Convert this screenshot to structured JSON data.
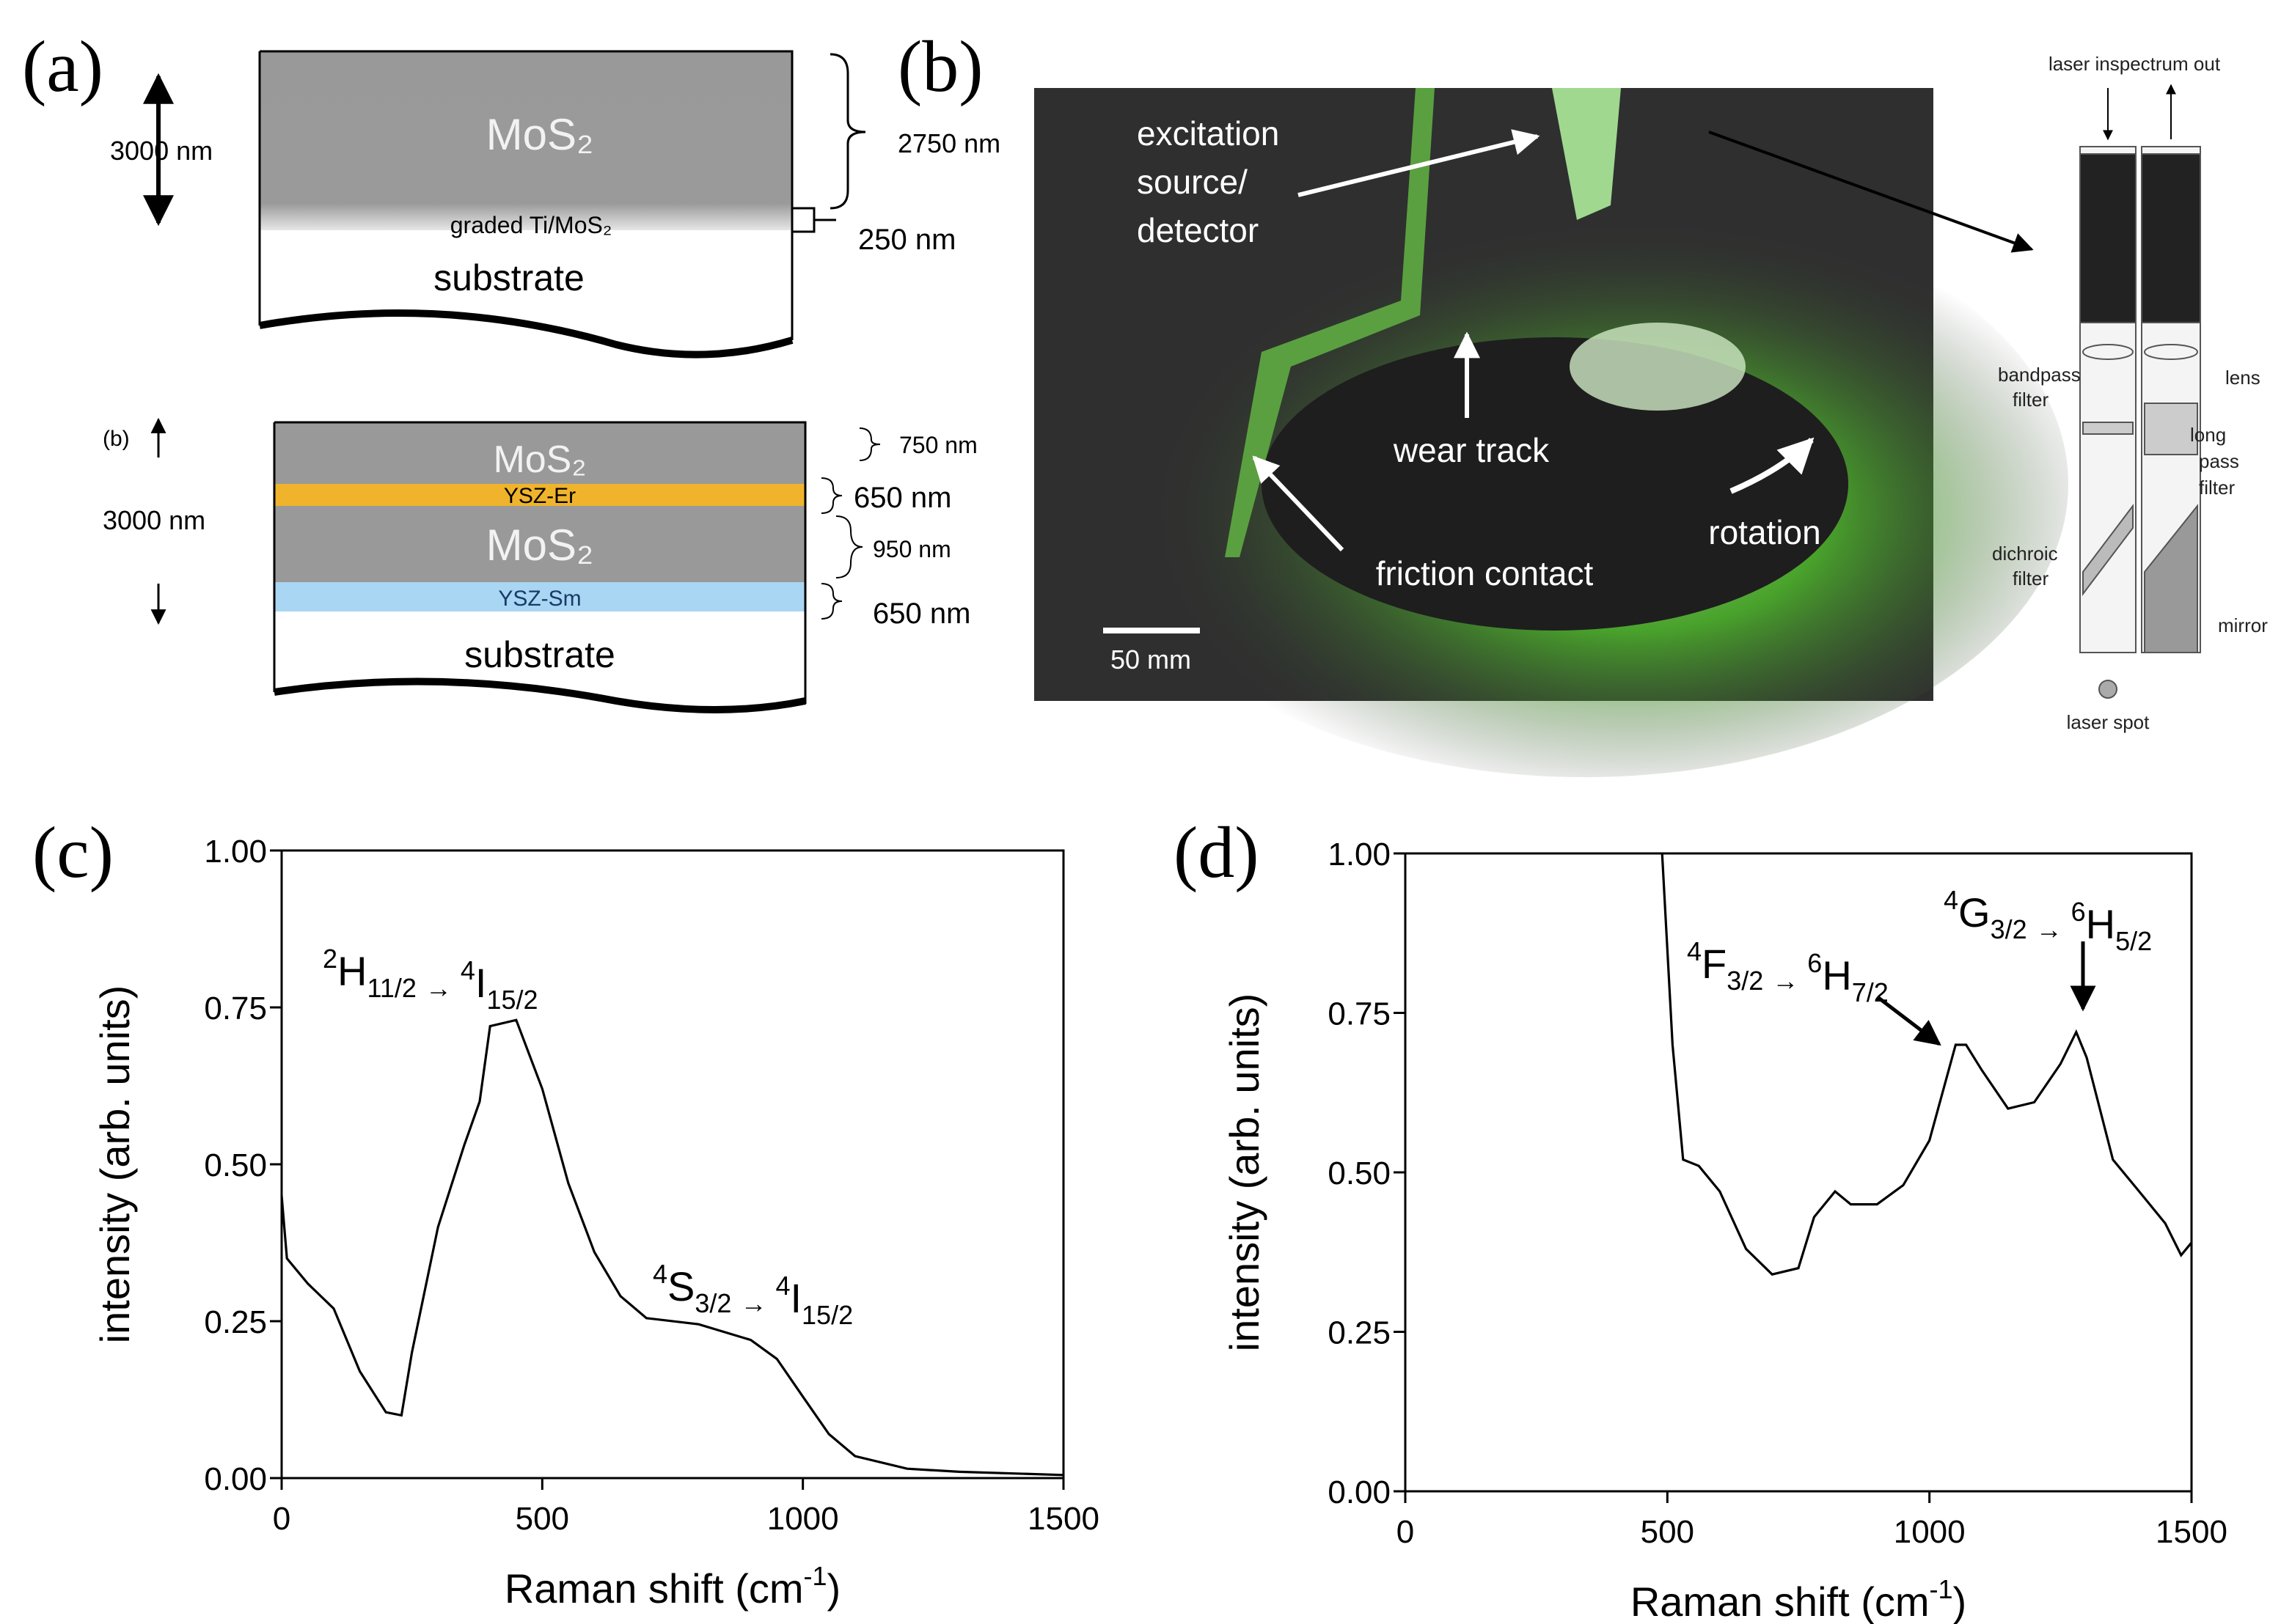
{
  "panel_a": {
    "label": "(a)",
    "top": {
      "thickness": "3000 nm",
      "layers": [
        "MoS₂",
        "graded Ti/MoS₂",
        "substrate"
      ],
      "dims": [
        "2750 nm",
        "250 nm"
      ]
    },
    "bottom": {
      "label": "(b)",
      "thickness": "3000 nm",
      "layers": [
        "MoS₂",
        "YSZ-Er",
        "MoS₂",
        "YSZ-Sm",
        "substrate"
      ],
      "dims": [
        "750 nm",
        "650 nm",
        "950 nm",
        "650 nm"
      ]
    }
  },
  "panel_b": {
    "label": "(b)",
    "photo": {
      "labels": [
        "excitation",
        "source/",
        "detector",
        "wear track",
        "friction contact",
        "rotation"
      ],
      "scale_bar": "50 mm"
    },
    "schematic": {
      "labels": [
        "laser inspectrum out",
        "lens",
        "bandpass",
        "filter",
        "long",
        "pass",
        "filter",
        "dichroic",
        "filter",
        "mirror",
        "laser spot"
      ]
    }
  },
  "chart_data": [
    {
      "type": "line",
      "panel_label": "(c)",
      "color": "#000000",
      "x": [
        0,
        10,
        50,
        100,
        150,
        200,
        230,
        250,
        300,
        350,
        380,
        400,
        450,
        500,
        550,
        600,
        650,
        700,
        800,
        900,
        950,
        1000,
        1050,
        1100,
        1200,
        1300,
        1500
      ],
      "values": [
        0.45,
        0.35,
        0.31,
        0.27,
        0.17,
        0.105,
        0.1,
        0.2,
        0.4,
        0.53,
        0.6,
        0.72,
        0.73,
        0.62,
        0.47,
        0.36,
        0.29,
        0.255,
        0.245,
        0.22,
        0.19,
        0.13,
        0.07,
        0.035,
        0.015,
        0.01,
        0.005
      ],
      "xlim": [
        0,
        1500
      ],
      "ylim": [
        0,
        1
      ],
      "xticks": [
        0,
        500,
        1000,
        1500
      ],
      "yticks": [
        {
          "value": 0,
          "label": "0.00"
        },
        {
          "value": 0.25,
          "label": "0.25"
        },
        {
          "value": 0.5,
          "label": "0.50"
        },
        {
          "value": 0.75,
          "label": "0.75"
        },
        {
          "value": 1,
          "label": "1.00"
        }
      ],
      "x_label": {
        "text": "Raman shift (cm",
        "sup": "-1",
        "end": ")"
      },
      "y_label": "intensity (arb. units)",
      "annotations": [
        {
          "terms": [
            {
              "sup": "2",
              "base": "H",
              "sub": "11/2"
            },
            {
              "sup": "4",
              "base": "I",
              "sub": "15/2"
            }
          ],
          "arrow": "→"
        },
        {
          "terms": [
            {
              "sup": "4",
              "base": "S",
              "sub": "3/2"
            },
            {
              "sup": "4",
              "base": "I",
              "sub": "15/2"
            }
          ],
          "arrow": "→"
        }
      ]
    },
    {
      "type": "line",
      "panel_label": "(d)",
      "color": "#000000",
      "x": [
        490,
        510,
        530,
        560,
        600,
        650,
        700,
        750,
        780,
        820,
        850,
        900,
        950,
        1000,
        1050,
        1070,
        1100,
        1150,
        1200,
        1250,
        1280,
        1300,
        1350,
        1400,
        1450,
        1480,
        1500
      ],
      "values": [
        1.0,
        0.7,
        0.52,
        0.51,
        0.47,
        0.38,
        0.34,
        0.35,
        0.43,
        0.47,
        0.45,
        0.45,
        0.48,
        0.55,
        0.7,
        0.7,
        0.66,
        0.6,
        0.61,
        0.67,
        0.72,
        0.68,
        0.52,
        0.47,
        0.42,
        0.37,
        0.39
      ],
      "xlim": [
        0,
        1500
      ],
      "ylim": [
        0,
        1
      ],
      "xticks": [
        0,
        500,
        1000,
        1500
      ],
      "yticks": [
        {
          "value": 0,
          "label": "0.00"
        },
        {
          "value": 0.25,
          "label": "0.25"
        },
        {
          "value": 0.5,
          "label": "0.50"
        },
        {
          "value": 0.75,
          "label": "0.75"
        },
        {
          "value": 1,
          "label": "1.00"
        }
      ],
      "x_label": {
        "text": "Raman shift (cm",
        "sup": "-1",
        "end": ")"
      },
      "y_label": "intensity (arb. units)",
      "annotations": [
        {
          "terms": [
            {
              "sup": "4",
              "base": "F",
              "sub": "3/2"
            },
            {
              "sup": "6",
              "base": "H",
              "sub": "7/2"
            }
          ],
          "arrow": "→"
        },
        {
          "terms": [
            {
              "sup": "4",
              "base": "G",
              "sub": "3/2"
            },
            {
              "sup": "6",
              "base": "H",
              "sub": "5/2"
            }
          ],
          "arrow": "→"
        }
      ]
    }
  ]
}
